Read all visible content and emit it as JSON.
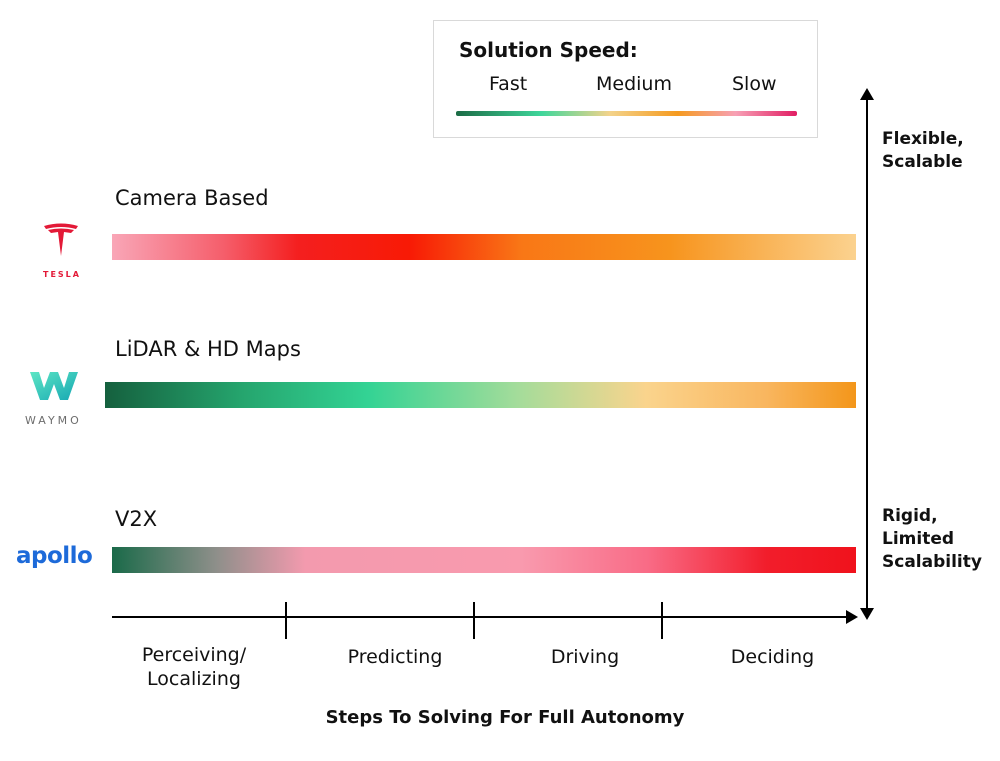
{
  "legend": {
    "title": "Solution Speed:",
    "labels": [
      "Fast",
      "Medium",
      "Slow"
    ],
    "colors": {
      "fast": "#1b6b45",
      "medium": "#f59a1f",
      "slow": "#e11d63"
    }
  },
  "rows": [
    {
      "label": "Camera Based",
      "logo": {
        "name": "tesla-icon",
        "text": "TESLA",
        "color": "#e31937"
      }
    },
    {
      "label": "LiDAR & HD Maps",
      "logo": {
        "name": "waymo-icon",
        "text": "WAYMO",
        "color": "#2ecfc0"
      }
    },
    {
      "label": "V2X",
      "logo": {
        "name": "apollo-icon",
        "text": "apollo",
        "color": "#1d6ad9"
      }
    }
  ],
  "x_axis": {
    "title": "Steps To Solving For Full Autonomy",
    "steps": [
      "Perceiving/\nLocalizing",
      "Predicting",
      "Driving",
      "Deciding"
    ]
  },
  "y_axis": {
    "top_label": "Flexible,\nScalable",
    "bottom_label": "Rigid,\nLimited\nScalability"
  }
}
